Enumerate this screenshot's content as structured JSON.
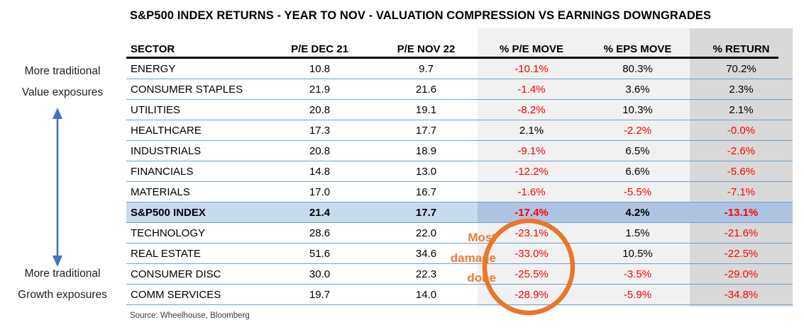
{
  "title": "S&P500 INDEX RETURNS - YEAR TO NOV - VALUATION COMPRESSION VS EARNINGS DOWNGRADES",
  "source": "Source: Wheelhouse, Bloomberg",
  "annotations": {
    "left_top": [
      "More traditional",
      "Value exposures"
    ],
    "left_bottom": [
      "More traditional",
      "Growth exposures"
    ],
    "circle_note": [
      "Most",
      "damage",
      "done"
    ]
  },
  "colors": {
    "negative_value": "#ff0000",
    "column_shade_light": "#f1f1f1",
    "column_shade_dark": "#d9d9d9",
    "index_row_left": "#c8daf0",
    "index_row_right": "#aec2e2",
    "annotation_orange": "#ed7d31",
    "arrow_blue": "#4472c4",
    "row_border_blue": "#6fa0d6"
  },
  "chart_data": {
    "type": "table",
    "title": "S&P500 INDEX RETURNS - YEAR TO NOV - VALUATION COMPRESSION VS EARNINGS DOWNGRADES",
    "columns": [
      "SECTOR",
      "P/E DEC 21",
      "P/E NOV 22",
      "% P/E MOVE",
      "% EPS MOVE",
      "% RETURN"
    ],
    "rows": [
      {
        "cells": [
          "ENERGY",
          "10.8",
          "9.7",
          "-10.1%",
          "80.3%",
          "70.2%"
        ],
        "highlight": false
      },
      {
        "cells": [
          "CONSUMER STAPLES",
          "21.9",
          "21.6",
          "-1.4%",
          "3.6%",
          "2.3%"
        ],
        "highlight": false
      },
      {
        "cells": [
          "UTILITIES",
          "20.8",
          "19.1",
          "-8.2%",
          "10.3%",
          "2.1%"
        ],
        "highlight": false
      },
      {
        "cells": [
          "HEALTHCARE",
          "17.3",
          "17.7",
          "2.1%",
          "-2.2%",
          "-0.0%"
        ],
        "highlight": false
      },
      {
        "cells": [
          "INDUSTRIALS",
          "20.8",
          "18.9",
          "-9.1%",
          "6.5%",
          "-2.6%"
        ],
        "highlight": false
      },
      {
        "cells": [
          "FINANCIALS",
          "14.8",
          "13.0",
          "-12.2%",
          "6.6%",
          "-5.6%"
        ],
        "highlight": false
      },
      {
        "cells": [
          "MATERIALS",
          "17.0",
          "16.7",
          "-1.6%",
          "-5.5%",
          "-7.1%"
        ],
        "highlight": false
      },
      {
        "cells": [
          "S&P500 INDEX",
          "21.4",
          "17.7",
          "-17.4%",
          "4.2%",
          "-13.1%"
        ],
        "highlight": true
      },
      {
        "cells": [
          "TECHNOLOGY",
          "28.6",
          "22.0",
          "-23.1%",
          "1.5%",
          "-21.6%"
        ],
        "highlight": false
      },
      {
        "cells": [
          "REAL ESTATE",
          "51.6",
          "34.6",
          "-33.0%",
          "10.5%",
          "-22.5%"
        ],
        "highlight": false
      },
      {
        "cells": [
          "CONSUMER DISC",
          "30.0",
          "22.3",
          "-25.5%",
          "-3.5%",
          "-29.0%"
        ],
        "highlight": false
      },
      {
        "cells": [
          "COMM SERVICES",
          "19.7",
          "14.0",
          "-28.9%",
          "-5.9%",
          "-34.8%"
        ],
        "highlight": false
      }
    ]
  }
}
